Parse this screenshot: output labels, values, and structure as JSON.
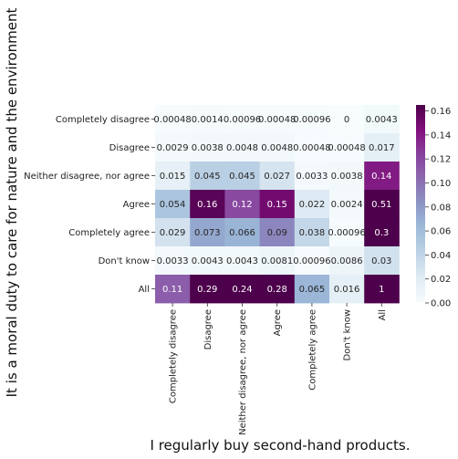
{
  "chart_data": {
    "type": "heatmap",
    "title": "",
    "xlabel": "I regularly buy second-hand products.",
    "ylabel": "It is a moral duty to care for nature and the environment",
    "x_categories": [
      "Completely disagree",
      "Disagree",
      "Neither disagree, nor agree",
      "Agree",
      "Completely agree",
      "Don't know",
      "All"
    ],
    "y_categories": [
      "Completely disagree",
      "Disagree",
      "Neither disagree, nor agree",
      "Agree",
      "Completely agree",
      "Don't know",
      "All"
    ],
    "values": [
      [
        0.00048,
        0.0014,
        0.00096,
        0.00048,
        0.00096,
        0,
        0.0043
      ],
      [
        0.0029,
        0.0038,
        0.0048,
        0.0048,
        0.00048,
        0.00048,
        0.017
      ],
      [
        0.015,
        0.045,
        0.045,
        0.027,
        0.0033,
        0.0038,
        0.14
      ],
      [
        0.054,
        0.16,
        0.12,
        0.15,
        0.022,
        0.0024,
        0.51
      ],
      [
        0.029,
        0.073,
        0.066,
        0.09,
        0.038,
        0.00096,
        0.3
      ],
      [
        0.0033,
        0.0043,
        0.0043,
        0.0081,
        0.00096,
        0.0086,
        0.03
      ],
      [
        0.11,
        0.29,
        0.24,
        0.28,
        0.065,
        0.016,
        1
      ]
    ],
    "value_labels": [
      [
        "0.00048",
        "0.0014",
        "0.00096",
        "0.00048",
        "0.00096",
        "0",
        "0.0043"
      ],
      [
        "0.0029",
        "0.0038",
        "0.0048",
        "0.0048",
        "0.00048",
        "0.00048",
        "0.017"
      ],
      [
        "0.015",
        "0.045",
        "0.045",
        "0.027",
        "0.0033",
        "0.0038",
        "0.14"
      ],
      [
        "0.054",
        "0.16",
        "0.12",
        "0.15",
        "0.022",
        "0.0024",
        "0.51"
      ],
      [
        "0.029",
        "0.073",
        "0.066",
        "0.09",
        "0.038",
        "0.00096",
        "0.3"
      ],
      [
        "0.0033",
        "0.0043",
        "0.0043",
        "0.0081",
        "0.00096",
        "0.0086",
        "0.03"
      ],
      [
        "0.11",
        "0.29",
        "0.24",
        "0.28",
        "0.065",
        "0.016",
        "1"
      ]
    ],
    "color_range": [
      0,
      0.165
    ],
    "colormap": "BuPu",
    "colorbar_ticks": [
      "0.00",
      "0.02",
      "0.04",
      "0.06",
      "0.08",
      "0.10",
      "0.12",
      "0.14",
      "0.16"
    ],
    "colorbar_tick_values": [
      0,
      0.02,
      0.04,
      0.06,
      0.08,
      0.1,
      0.12,
      0.14,
      0.16
    ],
    "colormap_stops": [
      "#f7fcfd",
      "#e0ecf4",
      "#bfd3e6",
      "#9ebcda",
      "#8c96c6",
      "#8c6bb1",
      "#88419d",
      "#810f7c",
      "#4d004b"
    ],
    "grid": false,
    "legend": "colorbar-right"
  }
}
